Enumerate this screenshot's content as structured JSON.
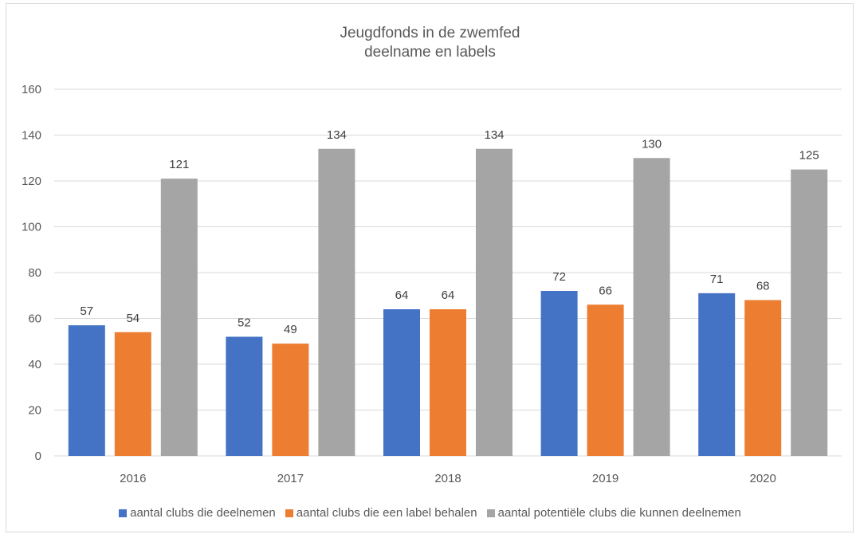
{
  "chart_data": {
    "type": "bar",
    "title": "Jeugdfonds in de zwemfed",
    "subtitle": "deelname en labels",
    "categories": [
      "2016",
      "2017",
      "2018",
      "2019",
      "2020"
    ],
    "series": [
      {
        "name": "aantal clubs die deelnemen",
        "color": "#4472c4",
        "values": [
          57,
          52,
          64,
          72,
          71
        ]
      },
      {
        "name": "aantal clubs die een label behalen",
        "color": "#ed7d31",
        "values": [
          54,
          49,
          64,
          66,
          68
        ]
      },
      {
        "name": "aantal potentiële clubs die kunnen deelnemen",
        "color": "#a5a5a5",
        "values": [
          121,
          134,
          134,
          130,
          125
        ]
      }
    ],
    "ylim": [
      0,
      160
    ],
    "yticks": [
      "0",
      "20",
      "40",
      "60",
      "80",
      "100",
      "120",
      "140",
      "160"
    ],
    "grid": true,
    "legend_position": "bottom",
    "data_labels": true
  }
}
